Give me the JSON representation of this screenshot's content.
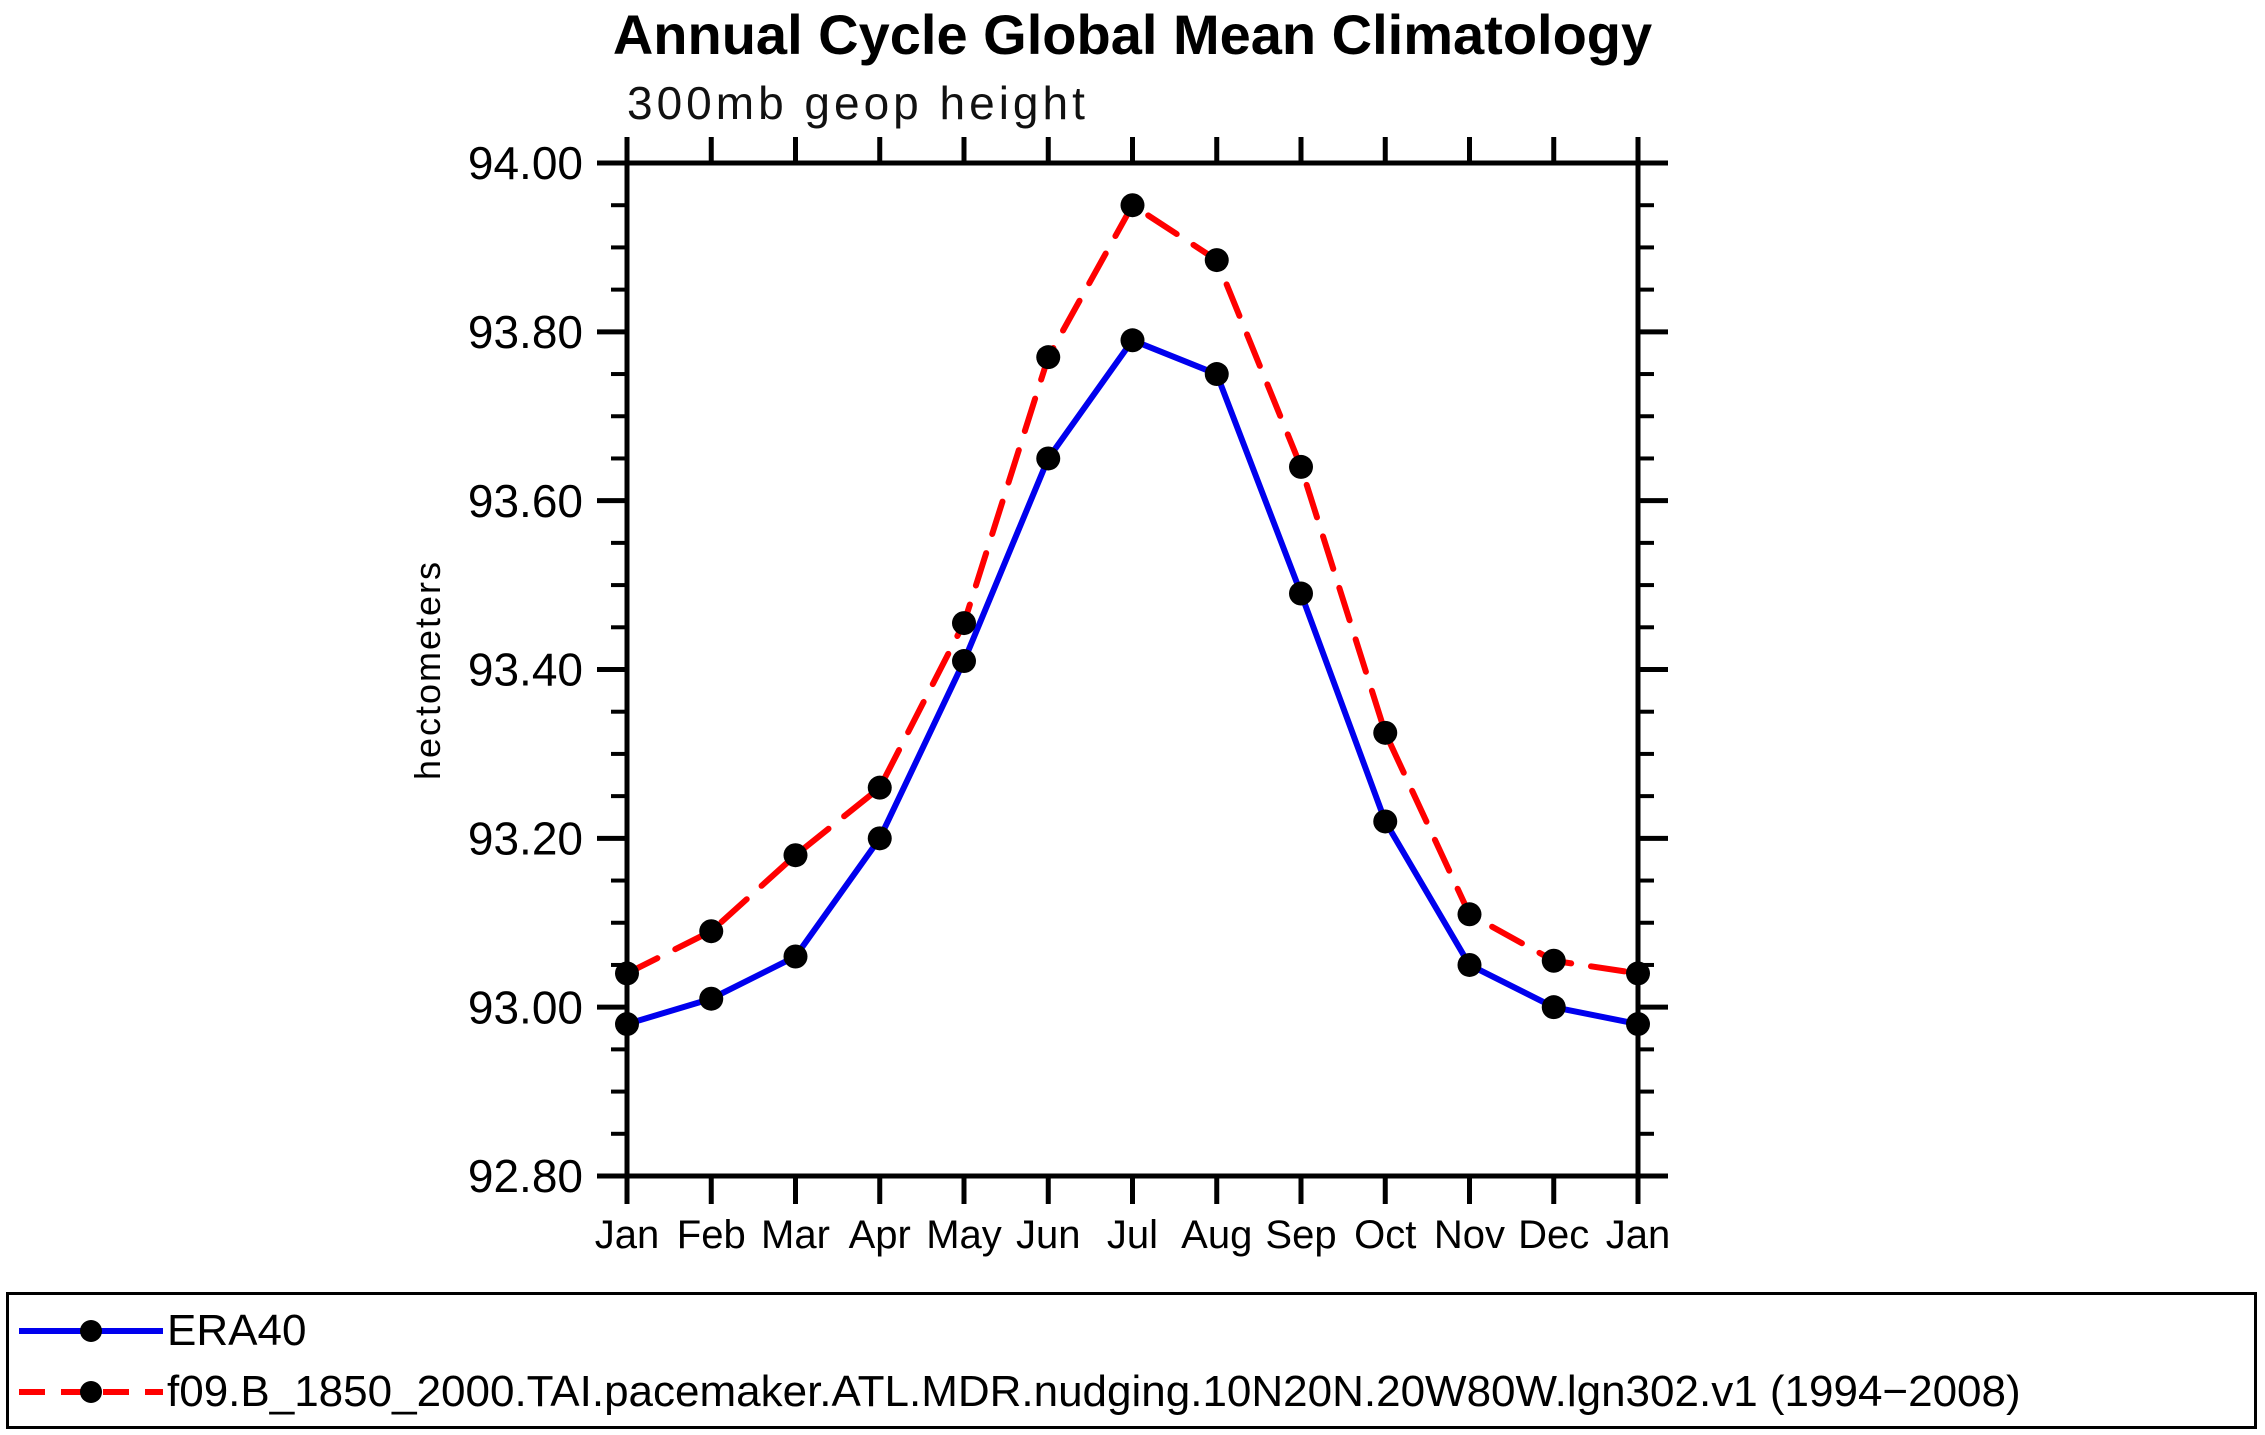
{
  "chart_data": {
    "type": "line",
    "title": "Annual Cycle Global Mean Climatology",
    "subtitle": "300mb geop height",
    "ylabel": "hectometers",
    "xlabel": "",
    "categories": [
      "Jan",
      "Feb",
      "Mar",
      "Apr",
      "May",
      "Jun",
      "Jul",
      "Aug",
      "Sep",
      "Oct",
      "Nov",
      "Dec",
      "Jan"
    ],
    "ylim": [
      92.8,
      94.0
    ],
    "y_major_tick_step": 0.2,
    "y_minor_tick_step": 0.05,
    "y_tick_labels": [
      "94.00",
      "93.80",
      "93.60",
      "93.40",
      "93.20",
      "93.00",
      "92.80"
    ],
    "grid": false,
    "legend_position": "bottom-left-box",
    "series": [
      {
        "name": "ERA40",
        "color": "#0000ee",
        "line_style": "solid",
        "marker": "filled-circle",
        "marker_color": "#000000",
        "values": [
          92.98,
          93.01,
          93.06,
          93.2,
          93.41,
          93.65,
          93.79,
          93.75,
          93.49,
          93.22,
          93.05,
          93.0,
          92.98
        ]
      },
      {
        "name": "f09.B_1850_2000.TAI.pacemaker.ATL.MDR.nudging.10N20N.20W80W.lgn302.v1 (1994−2008)",
        "color": "#ff0000",
        "line_style": "dashed",
        "marker": "filled-circle",
        "marker_color": "#000000",
        "values": [
          93.04,
          93.09,
          93.18,
          93.26,
          93.455,
          93.77,
          93.95,
          93.885,
          93.64,
          93.325,
          93.11,
          93.055,
          93.04
        ]
      }
    ]
  },
  "colors": {
    "axis": "#000000",
    "background": "#ffffff"
  }
}
